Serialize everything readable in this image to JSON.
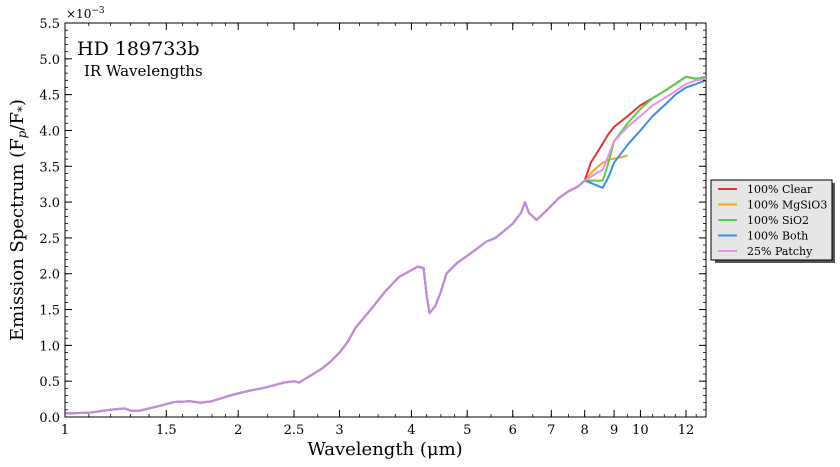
{
  "chart_data": {
    "type": "line",
    "title": "HD 189733b",
    "subtitle": "IR Wavelengths",
    "xlabel": "Wavelength (μm)",
    "ylabel": "Emission Spectrum (F",
    "ylabel_sub1": "p",
    "ylabel_mid": "/F",
    "ylabel_sub2": "*",
    "ylabel_end": ")",
    "y_multiplier": "×10",
    "y_multiplier_exp": "−3",
    "x_scale": "log",
    "xlim": [
      1.0,
      13.0
    ],
    "ylim": [
      0.0,
      5.5
    ],
    "x_ticks": [
      1,
      1.5,
      2,
      2.5,
      3,
      4,
      5,
      6,
      7,
      8,
      9,
      10,
      12
    ],
    "x_tick_labels": [
      "1",
      "1.5",
      "2",
      "2.5",
      "3",
      "4",
      "5",
      "6",
      "7",
      "8",
      "9",
      "10",
      "12"
    ],
    "y_ticks": [
      0,
      0.5,
      1,
      1.5,
      2,
      2.5,
      3,
      3.5,
      4,
      4.5,
      5,
      5.5
    ],
    "y_tick_labels": [
      "0.0",
      "0.5",
      "1.0",
      "1.5",
      "2.0",
      "2.5",
      "3.0",
      "3.5",
      "4.0",
      "4.5",
      "5.0",
      "5.5"
    ],
    "grid": false,
    "legend_position": "outside right",
    "base": {
      "x": [
        1.0,
        1.1,
        1.2,
        1.27,
        1.3,
        1.35,
        1.45,
        1.55,
        1.65,
        1.72,
        1.8,
        1.9,
        2.0,
        2.1,
        2.2,
        2.3,
        2.4,
        2.5,
        2.55,
        2.6,
        2.7,
        2.8,
        2.9,
        3.0,
        3.1,
        3.2,
        3.4,
        3.6,
        3.8,
        4.0,
        4.1,
        4.2,
        4.25,
        4.3,
        4.4,
        4.5,
        4.6,
        4.8,
        5.0,
        5.2,
        5.4,
        5.6,
        5.8,
        6.0,
        6.2,
        6.3,
        6.4,
        6.6,
        6.8,
        7.0,
        7.2,
        7.5,
        7.8,
        8.0
      ],
      "y": [
        0.05,
        0.06,
        0.1,
        0.12,
        0.09,
        0.09,
        0.15,
        0.21,
        0.22,
        0.2,
        0.22,
        0.28,
        0.33,
        0.37,
        0.4,
        0.44,
        0.48,
        0.5,
        0.48,
        0.52,
        0.6,
        0.68,
        0.78,
        0.9,
        1.05,
        1.25,
        1.5,
        1.75,
        1.95,
        2.05,
        2.1,
        2.08,
        1.7,
        1.45,
        1.55,
        1.75,
        2.0,
        2.15,
        2.25,
        2.35,
        2.45,
        2.5,
        2.6,
        2.7,
        2.85,
        3.0,
        2.85,
        2.75,
        2.85,
        2.95,
        3.05,
        3.15,
        3.22,
        3.3
      ]
    },
    "series": [
      {
        "name": "100% Clear",
        "color": "#e8302c",
        "x": [
          8.0,
          8.2,
          8.5,
          8.8,
          9.0,
          9.5,
          10.0,
          10.5,
          11.0,
          11.5,
          12.0,
          12.5,
          13.0
        ],
        "y": [
          3.3,
          3.55,
          3.75,
          3.95,
          4.05,
          4.2,
          4.35,
          4.45,
          4.55,
          4.65,
          4.75,
          4.72,
          4.75
        ]
      },
      {
        "name": "100% MgSiO3",
        "color": "#f5a623",
        "x": [
          8.0,
          8.3,
          8.6,
          8.9,
          9.2,
          9.5
        ],
        "y": [
          3.3,
          3.45,
          3.55,
          3.6,
          3.62,
          3.65
        ]
      },
      {
        "name": "100% SiO2",
        "color": "#55d048",
        "x": [
          8.0,
          8.3,
          8.6,
          8.8,
          9.0,
          9.5,
          10.0,
          10.5,
          11.0,
          11.5,
          12.0,
          12.5,
          13.0
        ],
        "y": [
          3.3,
          3.3,
          3.3,
          3.55,
          3.85,
          4.1,
          4.3,
          4.45,
          4.55,
          4.65,
          4.75,
          4.72,
          4.75
        ]
      },
      {
        "name": "100% Both",
        "color": "#3d8ee8",
        "x": [
          8.0,
          8.3,
          8.6,
          8.8,
          9.0,
          9.5,
          10.0,
          10.5,
          11.0,
          11.5,
          12.0,
          12.5,
          13.0
        ],
        "y": [
          3.3,
          3.25,
          3.2,
          3.35,
          3.55,
          3.8,
          4.0,
          4.2,
          4.35,
          4.5,
          4.6,
          4.65,
          4.7
        ]
      },
      {
        "name": "25% Patchy",
        "color": "#ee8fe0",
        "x": [
          8.0,
          8.3,
          8.6,
          8.8,
          9.0,
          9.5,
          10.0,
          10.5,
          11.0,
          11.5,
          12.0,
          12.5,
          13.0
        ],
        "y": [
          3.3,
          3.38,
          3.45,
          3.65,
          3.85,
          4.05,
          4.2,
          4.35,
          4.45,
          4.55,
          4.65,
          4.7,
          4.72
        ]
      }
    ]
  }
}
